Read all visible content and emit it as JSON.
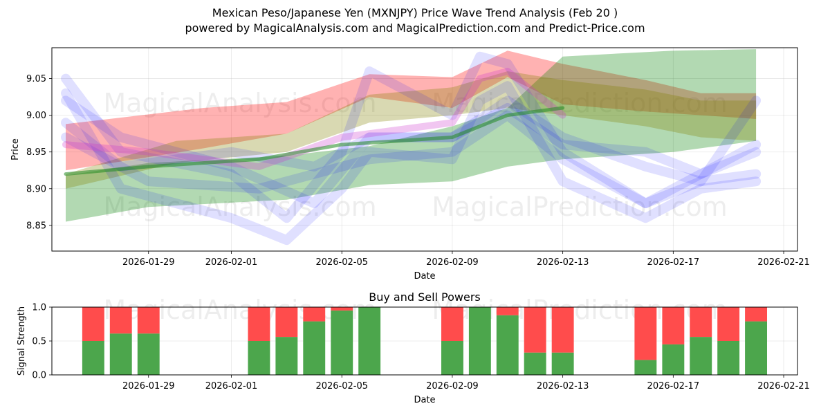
{
  "page": {
    "title_line1": "Mexican Peso/Japanese Yen (MXNJPY) Price Wave Trend Analysis (Feb 20 )",
    "title_line2": "powered by MagicalAnalysis.com and MagicalPrediction.com and Predict-Price.com",
    "watermarks": [
      "MagicalAnalysis.com",
      "MagicalPrediction.com"
    ]
  },
  "chart_data": [
    {
      "type": "area",
      "name": "price-wave-chart",
      "title": "",
      "xlabel": "Date",
      "ylabel": "Price",
      "xlim": [
        "2026-01-25T12:00",
        "2026-02-21T12:00"
      ],
      "ylim": [
        8.815,
        9.092
      ],
      "xticks": [
        "2026-01-29",
        "2026-02-01",
        "2026-02-05",
        "2026-02-09",
        "2026-02-13",
        "2026-02-17",
        "2026-02-21"
      ],
      "yticks": [
        8.85,
        8.9,
        8.95,
        9.0,
        9.05
      ],
      "grid": true,
      "band_series": [
        {
          "name": "red-band",
          "color": "#ff0000",
          "opacity": 0.3,
          "points": [
            [
              "2026-01-26",
              8.925,
              8.988
            ],
            [
              "2026-01-31",
              8.955,
              9.01
            ],
            [
              "2026-02-03",
              8.975,
              9.018
            ],
            [
              "2026-02-06",
              9.025,
              9.056
            ],
            [
              "2026-02-09",
              9.01,
              9.052
            ],
            [
              "2026-02-11",
              9.052,
              9.088
            ],
            [
              "2026-02-13",
              9.015,
              9.07
            ],
            [
              "2026-02-16",
              9.005,
              9.048
            ],
            [
              "2026-02-18",
              9.0,
              9.03
            ],
            [
              "2026-02-20",
              8.995,
              9.03
            ]
          ]
        },
        {
          "name": "green-band",
          "color": "#008000",
          "opacity": 0.3,
          "points": [
            [
              "2026-01-26",
              8.855,
              8.918
            ],
            [
              "2026-01-29",
              8.875,
              8.935
            ],
            [
              "2026-02-03",
              8.885,
              8.945
            ],
            [
              "2026-02-06",
              8.905,
              8.958
            ],
            [
              "2026-02-09",
              8.91,
              8.985
            ],
            [
              "2026-02-11",
              8.93,
              9.01
            ],
            [
              "2026-02-13",
              8.94,
              9.08
            ],
            [
              "2026-02-17",
              8.95,
              9.088
            ],
            [
              "2026-02-20",
              8.965,
              9.09
            ]
          ]
        },
        {
          "name": "olive-band",
          "color": "#808000",
          "opacity": 0.3,
          "points": [
            [
              "2026-01-26",
              8.9,
              8.92
            ],
            [
              "2026-01-30",
              8.935,
              8.965
            ],
            [
              "2026-02-03",
              8.95,
              8.975
            ],
            [
              "2026-02-06",
              8.99,
              9.028
            ],
            [
              "2026-02-09",
              9.0,
              9.038
            ],
            [
              "2026-02-11",
              9.01,
              9.06
            ],
            [
              "2026-02-13",
              9.0,
              9.048
            ],
            [
              "2026-02-16",
              8.985,
              9.035
            ],
            [
              "2026-02-18",
              8.97,
              9.02
            ],
            [
              "2026-02-20",
              8.965,
              9.02
            ]
          ]
        }
      ],
      "wave_series": [
        {
          "name": "blue-wave-1",
          "color": "#0000ff",
          "opacity": 0.12,
          "width": 14,
          "points": [
            [
              "2026-01-26",
              9.05
            ],
            [
              "2026-01-28",
              8.95
            ],
            [
              "2026-02-01",
              8.92
            ],
            [
              "2026-02-03",
              8.86
            ],
            [
              "2026-02-05",
              8.95
            ],
            [
              "2026-02-06",
              9.06
            ],
            [
              "2026-02-09",
              9.0
            ],
            [
              "2026-02-10",
              9.08
            ],
            [
              "2026-02-11",
              9.07
            ],
            [
              "2026-02-13",
              8.95
            ],
            [
              "2026-02-16",
              8.88
            ],
            [
              "2026-02-18",
              8.92
            ],
            [
              "2026-02-20",
              8.95
            ]
          ]
        },
        {
          "name": "blue-wave-2",
          "color": "#0000ff",
          "opacity": 0.12,
          "width": 14,
          "points": [
            [
              "2026-01-26",
              9.03
            ],
            [
              "2026-01-28",
              8.9
            ],
            [
              "2026-02-01",
              8.86
            ],
            [
              "2026-02-03",
              8.83
            ],
            [
              "2026-02-05",
              8.9
            ],
            [
              "2026-02-06",
              8.95
            ],
            [
              "2026-02-09",
              8.94
            ],
            [
              "2026-02-10",
              9.02
            ],
            [
              "2026-02-11",
              9.04
            ],
            [
              "2026-02-13",
              8.91
            ],
            [
              "2026-02-16",
              8.86
            ],
            [
              "2026-02-18",
              8.9
            ],
            [
              "2026-02-20",
              8.91
            ]
          ]
        },
        {
          "name": "blue-wave-3",
          "color": "#0000ff",
          "opacity": 0.12,
          "width": 14,
          "points": [
            [
              "2026-01-26",
              9.02
            ],
            [
              "2026-01-28",
              8.97
            ],
            [
              "2026-02-01",
              8.93
            ],
            [
              "2026-02-04",
              8.88
            ],
            [
              "2026-02-06",
              8.97
            ],
            [
              "2026-02-09",
              8.97
            ],
            [
              "2026-02-11",
              9.02
            ],
            [
              "2026-02-13",
              8.97
            ],
            [
              "2026-02-16",
              8.93
            ],
            [
              "2026-02-18",
              8.91
            ],
            [
              "2026-02-20",
              8.92
            ]
          ]
        },
        {
          "name": "blue-wave-4",
          "color": "#0000ff",
          "opacity": 0.12,
          "width": 14,
          "points": [
            [
              "2026-01-26",
              8.99
            ],
            [
              "2026-01-28",
              8.93
            ],
            [
              "2026-02-01",
              8.95
            ],
            [
              "2026-02-04",
              8.93
            ],
            [
              "2026-02-06",
              8.97
            ],
            [
              "2026-02-09",
              8.97
            ],
            [
              "2026-02-11",
              9.01
            ],
            [
              "2026-02-13",
              8.96
            ],
            [
              "2026-02-16",
              8.95
            ],
            [
              "2026-02-18",
              8.92
            ],
            [
              "2026-02-20",
              8.96
            ]
          ]
        },
        {
          "name": "blue-wave-5",
          "color": "#0000ff",
          "opacity": 0.12,
          "width": 14,
          "points": [
            [
              "2026-01-26",
              8.97
            ],
            [
              "2026-01-29",
              8.91
            ],
            [
              "2026-02-02",
              8.9
            ],
            [
              "2026-02-05",
              8.93
            ],
            [
              "2026-02-06",
              8.94
            ],
            [
              "2026-02-09",
              8.95
            ],
            [
              "2026-02-11",
              9.0
            ],
            [
              "2026-02-13",
              8.94
            ],
            [
              "2026-02-16",
              8.88
            ],
            [
              "2026-02-18",
              8.91
            ],
            [
              "2026-02-20",
              9.02
            ]
          ]
        },
        {
          "name": "purple-wave",
          "color": "#cc33cc",
          "opacity": 0.28,
          "width": 10,
          "points": [
            [
              "2026-01-26",
              8.96
            ],
            [
              "2026-01-29",
              8.95
            ],
            [
              "2026-02-02",
              8.93
            ],
            [
              "2026-02-05",
              8.97
            ],
            [
              "2026-02-09",
              8.99
            ],
            [
              "2026-02-10",
              9.05
            ],
            [
              "2026-02-11",
              9.06
            ],
            [
              "2026-02-13",
              9.0
            ]
          ]
        },
        {
          "name": "green-trend",
          "color": "#228b22",
          "opacity": 0.55,
          "width": 5,
          "points": [
            [
              "2026-01-26",
              8.92
            ],
            [
              "2026-01-29",
              8.93
            ],
            [
              "2026-02-02",
              8.94
            ],
            [
              "2026-02-05",
              8.96
            ],
            [
              "2026-02-09",
              8.97
            ],
            [
              "2026-02-11",
              9.0
            ],
            [
              "2026-02-13",
              9.01
            ]
          ]
        }
      ]
    },
    {
      "type": "bar",
      "name": "buy-sell-chart",
      "title": "Buy and Sell Powers",
      "xlabel": "Date",
      "ylabel": "Signal Strength",
      "ylim": [
        0.0,
        1.0
      ],
      "yticks": [
        0.0,
        0.5,
        1.0
      ],
      "xticks": [
        "2026-01-29",
        "2026-02-01",
        "2026-02-05",
        "2026-02-09",
        "2026-02-13",
        "2026-02-17",
        "2026-02-21"
      ],
      "grid": true,
      "colors": {
        "buy": "#4ca64c",
        "sell": "#ff4c4c"
      },
      "categories": [
        "2026-01-27",
        "2026-01-28",
        "2026-01-29",
        "2026-02-02",
        "2026-02-03",
        "2026-02-04",
        "2026-02-05",
        "2026-02-06",
        "2026-02-09",
        "2026-02-10",
        "2026-02-11",
        "2026-02-12",
        "2026-02-13",
        "2026-02-16",
        "2026-02-17",
        "2026-02-18",
        "2026-02-19",
        "2026-02-20"
      ],
      "series": [
        {
          "name": "Buy",
          "values": [
            0.5,
            0.61,
            0.61,
            0.5,
            0.56,
            0.79,
            0.95,
            1.0,
            0.5,
            1.0,
            0.88,
            0.33,
            0.33,
            0.22,
            0.45,
            0.56,
            0.5,
            0.79
          ]
        },
        {
          "name": "Sell",
          "values": [
            0.5,
            0.39,
            0.39,
            0.5,
            0.44,
            0.21,
            0.05,
            0.0,
            0.5,
            0.0,
            0.12,
            0.67,
            0.67,
            0.78,
            0.55,
            0.44,
            0.5,
            0.21
          ]
        }
      ]
    }
  ]
}
